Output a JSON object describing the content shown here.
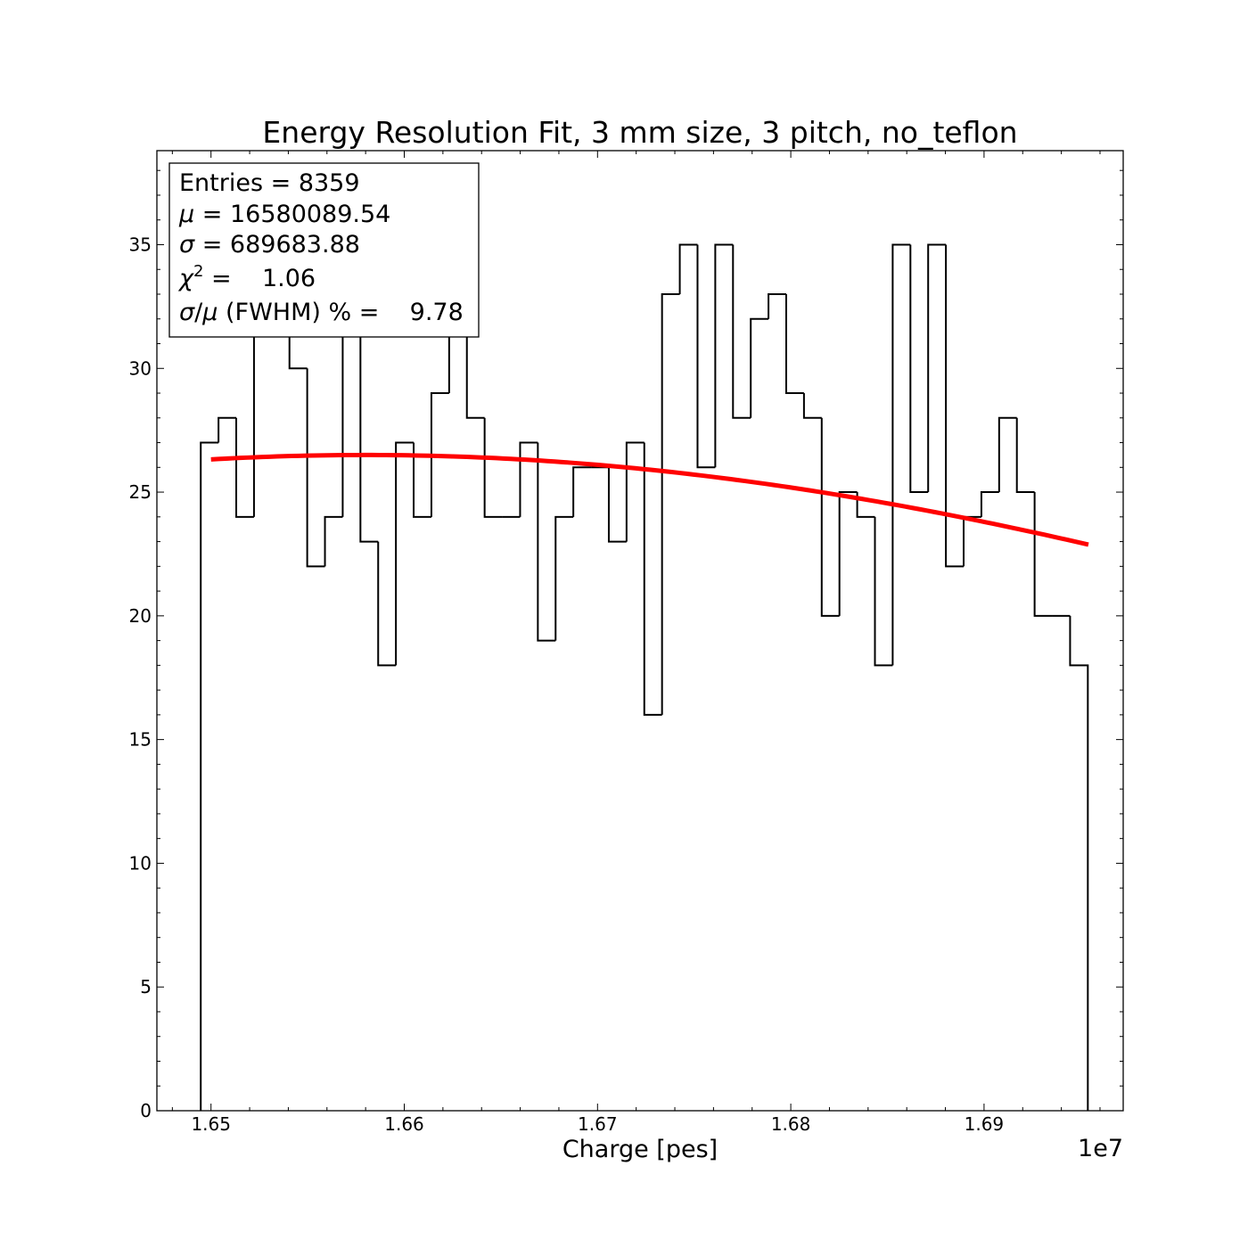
{
  "chart_data": {
    "type": "histogram",
    "title": "Energy Resolution Fit, 3 mm size, 3 pitch, no_teflon",
    "xlabel": "Charge [pes]",
    "ylabel": "",
    "x_offset_label": "1e7",
    "xlim": [
      16472000,
      16972000
    ],
    "ylim": [
      0,
      38.8
    ],
    "x_ticks": [
      1.65,
      1.66,
      1.67,
      1.68,
      1.69
    ],
    "x_tick_labels": [
      "1.65",
      "1.66",
      "1.67",
      "1.68",
      "1.69"
    ],
    "y_ticks": [
      0,
      5,
      10,
      15,
      20,
      25,
      30,
      35
    ],
    "y_tick_labels": [
      "0",
      "5",
      "10",
      "15",
      "20",
      "25",
      "30",
      "35"
    ],
    "bin_edges_start": 16494700,
    "bin_width": 9180,
    "counts": [
      27,
      28,
      24,
      33,
      33,
      30,
      22,
      24,
      37,
      23,
      18,
      27,
      24,
      29,
      33,
      28,
      24,
      24,
      27,
      19,
      24,
      26,
      26,
      23,
      27,
      16,
      33,
      35,
      26,
      35,
      28,
      32,
      33,
      29,
      28,
      20,
      25,
      24,
      18,
      35,
      25,
      35,
      22,
      24,
      25,
      28,
      25,
      20,
      20,
      18
    ],
    "fit": {
      "type": "gaussian",
      "color": "#ff0000",
      "amplitude": 26.5,
      "mean": 16580089.54,
      "sigma": 689683.88,
      "x_range": [
        16500000,
        16954000
      ]
    },
    "stats_box": {
      "entries": "Entries = 8359",
      "mu_symbol": "μ",
      "mu_value": " = 16580089.54",
      "sigma_symbol": "σ",
      "sigma_value": " = 689683.88",
      "chi_symbol": "χ",
      "chi_superscript": "2",
      "chi_value": " =    1.06",
      "res_sigma": "σ",
      "res_slash": "/",
      "res_mu": "μ",
      "res_value": " (FWHM) % =    9.78"
    },
    "histogram_color": "#000000",
    "grid": false
  }
}
